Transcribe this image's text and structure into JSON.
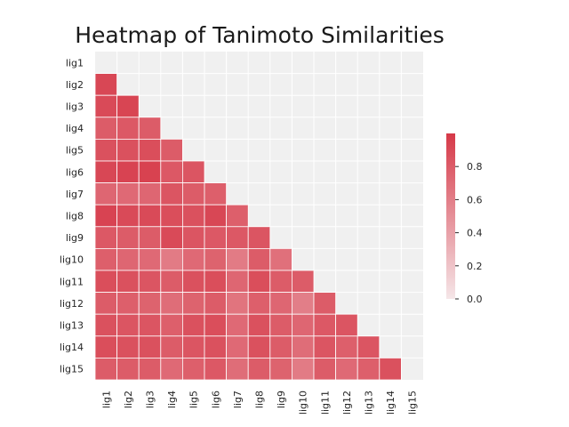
{
  "chart_data": {
    "type": "heatmap",
    "title": "Heatmap of Tanimoto Similarities",
    "xlabel": "",
    "ylabel": "",
    "row_labels": [
      "lig1",
      "lig2",
      "lig3",
      "lig4",
      "lig5",
      "lig6",
      "lig7",
      "lig8",
      "lig9",
      "lig10",
      "lig11",
      "lig12",
      "lig13",
      "lig14",
      "lig15"
    ],
    "col_labels": [
      "lig1",
      "lig2",
      "lig3",
      "lig4",
      "lig5",
      "lig6",
      "lig7",
      "lig8",
      "lig9",
      "lig10",
      "lig11",
      "lig12",
      "lig13",
      "lig14",
      "lig15"
    ],
    "mask": "upper triangle incl. diagonal",
    "values": [
      [],
      [
        0.92
      ],
      [
        0.9,
        0.93
      ],
      [
        0.8,
        0.82,
        0.8
      ],
      [
        0.86,
        0.86,
        0.88,
        0.8
      ],
      [
        0.92,
        0.94,
        0.95,
        0.82,
        0.84
      ],
      [
        0.74,
        0.72,
        0.74,
        0.84,
        0.8,
        0.78
      ],
      [
        0.94,
        0.9,
        0.9,
        0.88,
        0.86,
        0.92,
        0.78
      ],
      [
        0.82,
        0.8,
        0.8,
        0.9,
        0.84,
        0.82,
        0.82,
        0.84
      ],
      [
        0.78,
        0.74,
        0.72,
        0.62,
        0.72,
        0.76,
        0.62,
        0.8,
        0.68
      ],
      [
        0.88,
        0.86,
        0.84,
        0.8,
        0.86,
        0.88,
        0.74,
        0.88,
        0.8,
        0.8
      ],
      [
        0.8,
        0.78,
        0.76,
        0.7,
        0.76,
        0.8,
        0.66,
        0.78,
        0.74,
        0.6,
        0.8
      ],
      [
        0.86,
        0.84,
        0.84,
        0.78,
        0.86,
        0.88,
        0.72,
        0.86,
        0.8,
        0.74,
        0.82,
        0.84
      ],
      [
        0.88,
        0.86,
        0.86,
        0.8,
        0.84,
        0.86,
        0.72,
        0.86,
        0.8,
        0.7,
        0.84,
        0.78,
        0.84
      ],
      [
        0.8,
        0.8,
        0.8,
        0.72,
        0.78,
        0.82,
        0.7,
        0.8,
        0.76,
        0.62,
        0.8,
        0.72,
        0.78,
        0.86
      ]
    ],
    "colorbar": {
      "range": [
        0.0,
        1.0
      ],
      "ticks": [
        "0.0",
        "0.2",
        "0.4",
        "0.6",
        "0.8"
      ],
      "tick_values": [
        0.0,
        0.2,
        0.4,
        0.6,
        0.8
      ],
      "color_low": "#f5e6e8",
      "color_high": "#d63948"
    },
    "masked_color": "#f0f0f0",
    "grid_color": "#ffffff"
  }
}
